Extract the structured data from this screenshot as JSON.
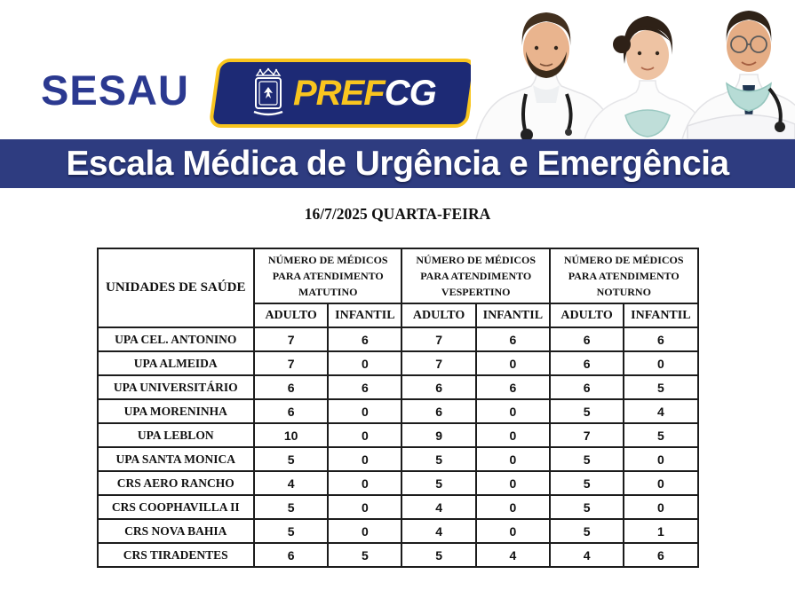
{
  "header": {
    "sesau_wordmark": "SESAU",
    "prefcg_logo": {
      "pref": "PREF",
      "cg": "CG",
      "emblem": "campo-grande-coat-of-arms"
    },
    "photo": "three-doctors-in-white-coats"
  },
  "banner": {
    "title": "Escala Médica de Urgência e Emergência"
  },
  "date_line": "16/7/2025 QUARTA-FEIRA",
  "table": {
    "unit_header": "UNIDADES DE SAÚDE",
    "group_headers": [
      "NÚMERO DE MÉDICOS\nPARA ATENDIMENTO\nMATUTINO",
      "NÚMERO DE MÉDICOS\nPARA ATENDIMENTO\nVESPERTINO",
      "NÚMERO DE MÉDICOS\nPARA ATENDIMENTO\nNOTURNO"
    ],
    "sub_headers": [
      "ADULTO",
      "INFANTIL"
    ],
    "rows": [
      {
        "unit": "UPA CEL. ANTONINO",
        "values": [
          7,
          6,
          7,
          6,
          6,
          6
        ]
      },
      {
        "unit": "UPA ALMEIDA",
        "values": [
          7,
          0,
          7,
          0,
          6,
          0
        ]
      },
      {
        "unit": "UPA UNIVERSITÁRIO",
        "values": [
          6,
          6,
          6,
          6,
          6,
          5
        ]
      },
      {
        "unit": "UPA MORENINHA",
        "values": [
          6,
          0,
          6,
          0,
          5,
          4
        ]
      },
      {
        "unit": "UPA LEBLON",
        "values": [
          10,
          0,
          9,
          0,
          7,
          5
        ]
      },
      {
        "unit": "UPA SANTA MONICA",
        "values": [
          5,
          0,
          5,
          0,
          5,
          0
        ]
      },
      {
        "unit": "CRS AERO RANCHO",
        "values": [
          4,
          0,
          5,
          0,
          5,
          0
        ]
      },
      {
        "unit": "CRS COOPHAVILLA II",
        "values": [
          5,
          0,
          4,
          0,
          5,
          0
        ]
      },
      {
        "unit": "CRS NOVA BAHIA",
        "values": [
          5,
          0,
          4,
          0,
          5,
          1
        ]
      },
      {
        "unit": "CRS TIRADENTES",
        "values": [
          6,
          5,
          5,
          4,
          4,
          6
        ]
      }
    ]
  },
  "colors": {
    "banner_navy": "#2e3c80",
    "sesau_navy": "#2b3990",
    "logo_navy": "#1d2a75",
    "logo_yellow": "#f9c51f",
    "table_border": "#1c1c1c",
    "mask_teal": "#b7dcd6"
  }
}
